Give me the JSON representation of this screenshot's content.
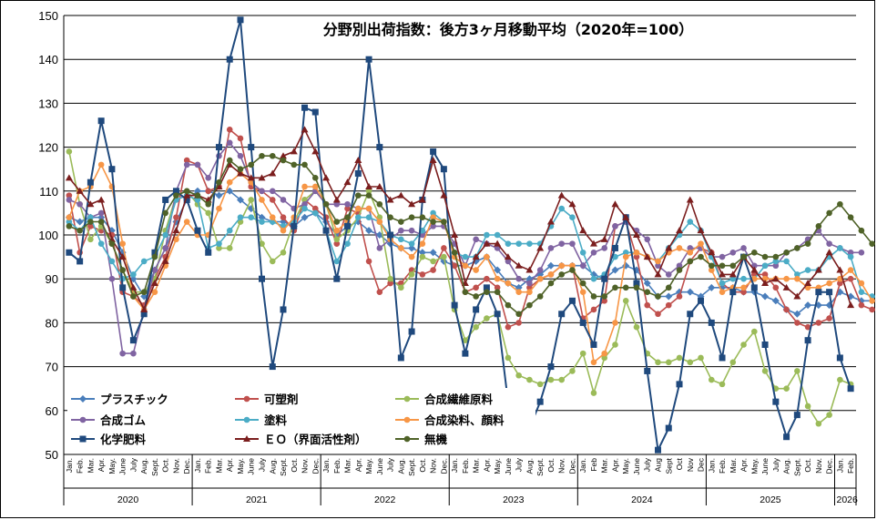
{
  "chart_data": {
    "type": "line",
    "title": "分野別出荷指数：後方3ヶ月移動平均（2020年=100）",
    "ylim": [
      50,
      150
    ],
    "y_ticks": [
      "50",
      "60",
      "70",
      "80",
      "90",
      "100",
      "110",
      "120",
      "130",
      "140",
      "150"
    ],
    "month_labels": [
      "Jan.",
      "Feb.",
      "Mar.",
      "Apr.",
      "May.",
      "June",
      "July",
      "Aug.",
      "Sept.",
      "Oct.",
      "Nov.",
      "Dec."
    ],
    "years": [
      {
        "label": "2020",
        "months": [
          "Jan.",
          "Feb.",
          "Mar.",
          "Apr.",
          "May.",
          "June",
          "July",
          "Aug.",
          "Sept.",
          "Oct.",
          "Nov.",
          "Dec."
        ]
      },
      {
        "label": "2021",
        "months": [
          "Jan.",
          "Feb.",
          "Mar.",
          "Apr.",
          "May.",
          "June",
          "July",
          "Aug.",
          "Sept.",
          "Oct.",
          "Nov.",
          "Dec."
        ]
      },
      {
        "label": "2022",
        "months": [
          "Jan.",
          "Feb.",
          "Mar.",
          "Apr.",
          "May.",
          "June",
          "July",
          "Aug.",
          "Sept.",
          "Oct.",
          "Nov.",
          "Dec."
        ]
      },
      {
        "label": "2023",
        "months": [
          "Jan.",
          "Feb.",
          "Mar.",
          "Apr.",
          "May.",
          "June",
          "July",
          "Aug.",
          "Sept.",
          "Oct.",
          "Nov.",
          "Dec."
        ]
      },
      {
        "label": "2024",
        "months": [
          "Jan.",
          "Feb",
          "Mar.",
          "Apr.",
          "May.",
          "June",
          "July",
          "Aug",
          "Sept",
          "Oct",
          "Nov",
          "Dec"
        ]
      },
      {
        "label": "2025",
        "months": [
          "Jan.",
          "Feb.",
          "Mar.",
          "Apr.",
          "May.",
          "June",
          "July",
          "Aug.",
          "Sept.",
          "Oct.",
          "Nov.",
          "Dec."
        ]
      },
      {
        "label": "2026",
        "months": [
          "Jan.",
          "Feb."
        ]
      }
    ],
    "grid": true,
    "legend_position": "bottom-left",
    "series": [
      {
        "name": "プラスチック",
        "color": "#4a7ebb",
        "marker": "diamond",
        "values": [
          104,
          103,
          104,
          104,
          101,
          96,
          90,
          86,
          92,
          97,
          103,
          108,
          110,
          110,
          109,
          110,
          108,
          106,
          104,
          103,
          103,
          102,
          104,
          105,
          103,
          100,
          102,
          103,
          101,
          100,
          98,
          97,
          97,
          96,
          96,
          94,
          93,
          93,
          94,
          95,
          92,
          89,
          88,
          90,
          91,
          93,
          93,
          93,
          93,
          91,
          90,
          92,
          93,
          92,
          89,
          86,
          86,
          87,
          87,
          86,
          88,
          88,
          88,
          87,
          87,
          86,
          85,
          83,
          82,
          84,
          84,
          84,
          87,
          86,
          85,
          85
        ]
      },
      {
        "name": "可塑剤",
        "color": "#c0504d",
        "marker": "circle",
        "values": [
          109,
          96,
          102,
          101,
          100,
          87,
          86,
          84,
          90,
          95,
          104,
          117,
          116,
          110,
          111,
          124,
          122,
          111,
          110,
          108,
          104,
          101,
          108,
          106,
          104,
          98,
          106,
          105,
          94,
          87,
          89,
          89,
          92,
          91,
          92,
          97,
          93,
          87,
          88,
          90,
          88,
          79,
          80,
          88,
          90,
          91,
          93,
          93,
          81,
          83,
          85,
          102,
          103,
          95,
          84,
          82,
          84,
          86,
          94,
          97,
          96,
          89,
          87,
          87,
          91,
          91,
          88,
          83,
          80,
          79,
          80,
          81,
          89,
          90,
          84,
          83
        ]
      },
      {
        "name": "合成繊維原料",
        "color": "#9bbb59",
        "marker": "circle",
        "values": [
          119,
          107,
          99,
          102,
          98,
          92,
          87,
          87,
          90,
          101,
          109,
          110,
          107,
          105,
          97,
          97,
          103,
          108,
          98,
          94,
          96,
          103,
          108,
          110,
          107,
          99,
          101,
          104,
          110,
          104,
          90,
          88,
          91,
          95,
          94,
          95,
          83,
          76,
          79,
          81,
          82,
          72,
          68,
          67,
          66,
          67,
          67,
          69,
          73,
          64,
          72,
          75,
          85,
          79,
          73,
          71,
          71,
          72,
          71,
          72,
          67,
          66,
          71,
          75,
          78,
          69,
          65,
          65,
          69,
          61,
          57,
          59,
          67,
          66
        ]
      },
      {
        "name": "合成ゴム",
        "color": "#8064a2",
        "marker": "circle",
        "values": [
          108,
          107,
          104,
          105,
          90,
          73,
          73,
          83,
          92,
          97,
          110,
          116,
          116,
          113,
          118,
          121,
          118,
          112,
          110,
          110,
          108,
          106,
          107,
          110,
          107,
          107,
          107,
          106,
          106,
          97,
          99,
          101,
          101,
          100,
          102,
          102,
          98,
          93,
          99,
          98,
          97,
          94,
          90,
          89,
          92,
          97,
          98,
          98,
          93,
          96,
          97,
          102,
          103,
          101,
          99,
          93,
          91,
          93,
          97,
          97,
          95,
          95,
          96,
          97,
          93,
          93,
          93,
          96,
          97,
          99,
          101,
          98,
          97,
          96,
          96
        ]
      },
      {
        "name": "塗料",
        "color": "#4bacc6",
        "marker": "circle",
        "values": [
          103,
          101,
          104,
          98,
          94,
          90,
          91,
          94,
          95,
          100,
          108,
          109,
          108,
          97,
          98,
          101,
          104,
          104,
          103,
          103,
          102,
          103,
          106,
          105,
          101,
          94,
          98,
          104,
          104,
          103,
          100,
          99,
          98,
          101,
          105,
          103,
          96,
          95,
          95,
          100,
          100,
          98,
          98,
          98,
          98,
          102,
          106,
          104,
          96,
          90,
          91,
          95,
          96,
          96,
          95,
          94,
          97,
          100,
          103,
          101,
          95,
          89,
          90,
          90,
          90,
          93,
          94,
          94,
          91,
          92,
          92,
          95,
          97,
          95,
          87,
          86
        ]
      },
      {
        "name": "合成染料、顔料",
        "color": "#f79646",
        "marker": "circle",
        "values": [
          104,
          110,
          111,
          116,
          111,
          98,
          86,
          83,
          87,
          93,
          99,
          103,
          100,
          100,
          106,
          112,
          114,
          112,
          108,
          104,
          101,
          104,
          111,
          111,
          107,
          101,
          103,
          106,
          106,
          103,
          99,
          97,
          95,
          98,
          104,
          103,
          95,
          93,
          92,
          95,
          90,
          89,
          87,
          87,
          90,
          91,
          93,
          93,
          87,
          71,
          73,
          80,
          95,
          96,
          95,
          94,
          96,
          97,
          96,
          98,
          92,
          87,
          88,
          88,
          90,
          90,
          90,
          90,
          90,
          88,
          88,
          89,
          90,
          92,
          89,
          85
        ]
      },
      {
        "name": "化学肥料",
        "color": "#1f497d",
        "marker": "square",
        "values": [
          96,
          94,
          112,
          126,
          115,
          88,
          76,
          82,
          96,
          108,
          110,
          108,
          101,
          96,
          120,
          140,
          149,
          120,
          90,
          70,
          83,
          102,
          129,
          128,
          101,
          90,
          102,
          114,
          140,
          120,
          100,
          72,
          78,
          108,
          119,
          115,
          84,
          73,
          83,
          88,
          82,
          62,
          54,
          56,
          62,
          70,
          82,
          85,
          80,
          75,
          90,
          97,
          104,
          89,
          69,
          51,
          56,
          66,
          82,
          85,
          80,
          72,
          87,
          95,
          88,
          75,
          62,
          54,
          59,
          76,
          87,
          87,
          72,
          65
        ]
      },
      {
        "name": "ＥＯ（界面活性剤）",
        "color": "#7b1e1e",
        "marker": "triangle",
        "values": [
          113,
          110,
          107,
          108,
          99,
          95,
          88,
          83,
          89,
          94,
          101,
          109,
          109,
          108,
          111,
          116,
          114,
          113,
          113,
          114,
          118,
          119,
          124,
          119,
          113,
          108,
          112,
          117,
          111,
          111,
          108,
          109,
          107,
          108,
          117,
          109,
          100,
          89,
          95,
          98,
          98,
          95,
          93,
          92,
          97,
          103,
          109,
          107,
          101,
          98,
          99,
          107,
          104,
          100,
          95,
          91,
          97,
          101,
          108,
          101,
          96,
          91,
          91,
          95,
          92,
          89,
          90,
          88,
          86,
          89,
          92,
          96,
          92,
          84
        ]
      },
      {
        "name": "無機",
        "color": "#4f6228",
        "marker": "circle",
        "values": [
          102,
          101,
          103,
          103,
          98,
          92,
          86,
          87,
          95,
          105,
          109,
          110,
          109,
          107,
          112,
          117,
          115,
          116,
          118,
          118,
          117,
          116,
          116,
          113,
          107,
          103,
          104,
          109,
          109,
          107,
          104,
          103,
          104,
          104,
          103,
          103,
          96,
          87,
          86,
          87,
          87,
          84,
          82,
          84,
          86,
          89,
          91,
          92,
          89,
          86,
          86,
          88,
          88,
          88,
          87,
          86,
          88,
          92,
          94,
          95,
          93,
          93,
          93,
          95,
          96,
          95,
          95,
          96,
          97,
          98,
          102,
          105,
          107,
          104,
          101,
          98
        ]
      }
    ]
  }
}
